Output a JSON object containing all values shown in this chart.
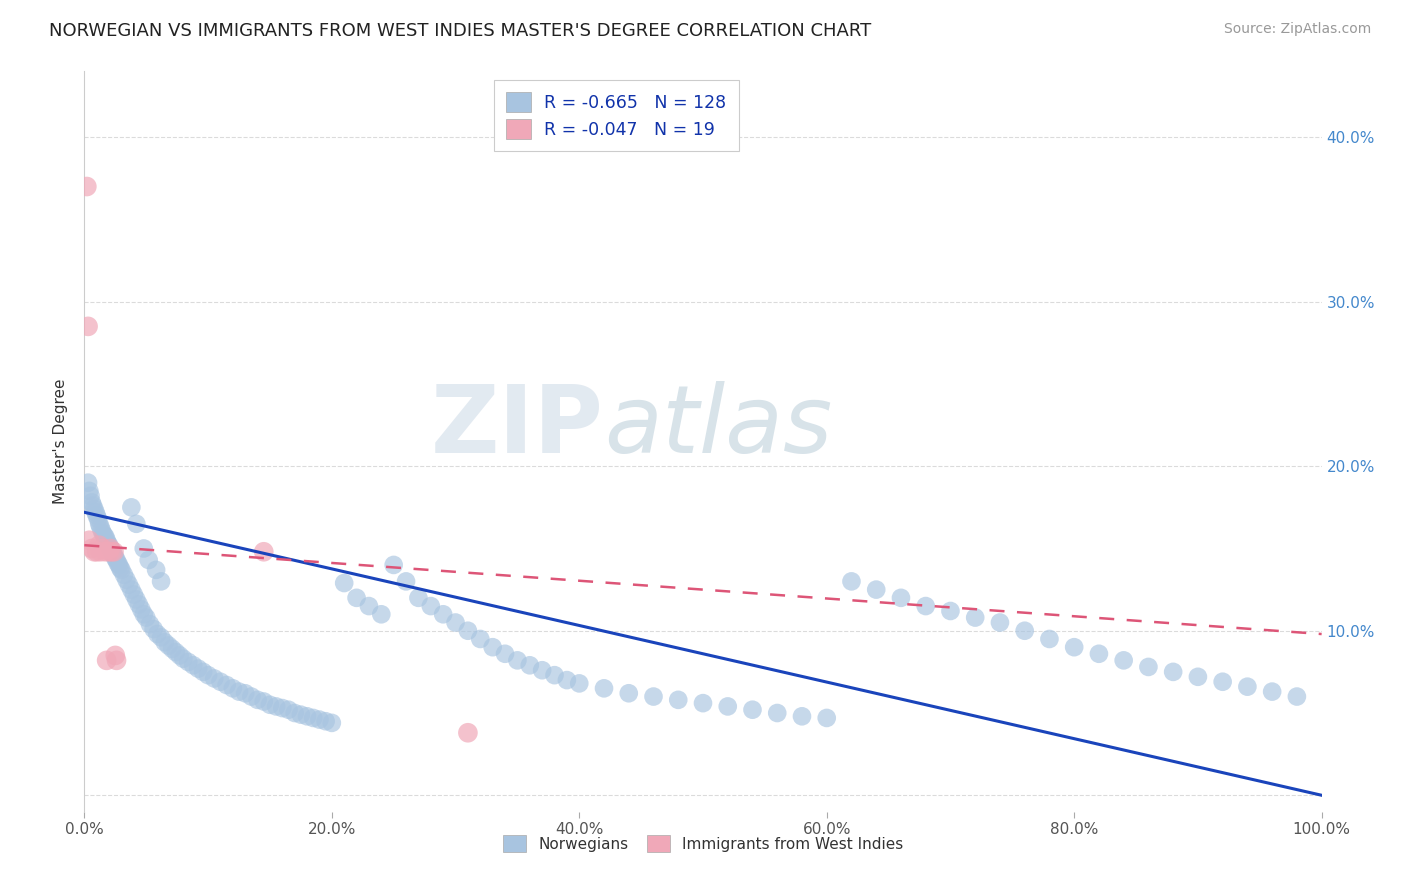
{
  "title": "NORWEGIAN VS IMMIGRANTS FROM WEST INDIES MASTER'S DEGREE CORRELATION CHART",
  "source": "Source: ZipAtlas.com",
  "ylabel": "Master's Degree",
  "xlim": [
    0.0,
    1.0
  ],
  "ylim": [
    -0.01,
    0.44
  ],
  "yticks": [
    0.0,
    0.1,
    0.2,
    0.3,
    0.4
  ],
  "ytick_labels_left": [
    "",
    "",
    "",
    "",
    ""
  ],
  "ytick_labels_right": [
    "",
    "10.0%",
    "20.0%",
    "30.0%",
    "40.0%"
  ],
  "xticks": [
    0.0,
    0.2,
    0.4,
    0.6,
    0.8,
    1.0
  ],
  "xtick_labels": [
    "0.0%",
    "20.0%",
    "40.0%",
    "60.0%",
    "80.0%",
    "100.0%"
  ],
  "norwegian_color": "#a8c4e0",
  "west_indies_color": "#f0a8b8",
  "norwegian_line_color": "#1a44bb",
  "west_indies_line_color": "#dd5577",
  "R_norwegian": -0.665,
  "N_norwegian": 128,
  "R_west_indies": -0.047,
  "N_west_indies": 19,
  "title_fontsize": 13,
  "source_fontsize": 10,
  "label_fontsize": 11,
  "tick_fontsize": 11,
  "watermark_text": "ZIPatlas",
  "background_color": "#ffffff",
  "grid_color": "#d8d8d8",
  "norwegian_x": [
    0.003,
    0.004,
    0.005,
    0.006,
    0.007,
    0.008,
    0.009,
    0.01,
    0.011,
    0.012,
    0.013,
    0.014,
    0.015,
    0.016,
    0.017,
    0.018,
    0.019,
    0.02,
    0.021,
    0.022,
    0.023,
    0.024,
    0.025,
    0.026,
    0.027,
    0.028,
    0.029,
    0.03,
    0.032,
    0.034,
    0.036,
    0.038,
    0.04,
    0.042,
    0.044,
    0.046,
    0.048,
    0.05,
    0.053,
    0.056,
    0.059,
    0.062,
    0.065,
    0.068,
    0.071,
    0.074,
    0.077,
    0.08,
    0.084,
    0.088,
    0.092,
    0.096,
    0.1,
    0.105,
    0.11,
    0.115,
    0.12,
    0.125,
    0.13,
    0.135,
    0.14,
    0.145,
    0.15,
    0.155,
    0.16,
    0.165,
    0.17,
    0.175,
    0.18,
    0.185,
    0.19,
    0.195,
    0.2,
    0.21,
    0.22,
    0.23,
    0.24,
    0.25,
    0.26,
    0.27,
    0.28,
    0.29,
    0.3,
    0.31,
    0.32,
    0.33,
    0.34,
    0.35,
    0.36,
    0.37,
    0.38,
    0.39,
    0.4,
    0.42,
    0.44,
    0.46,
    0.48,
    0.5,
    0.52,
    0.54,
    0.56,
    0.58,
    0.6,
    0.62,
    0.64,
    0.66,
    0.68,
    0.7,
    0.72,
    0.74,
    0.76,
    0.78,
    0.8,
    0.82,
    0.84,
    0.86,
    0.88,
    0.9,
    0.92,
    0.94,
    0.96,
    0.98,
    0.038,
    0.042,
    0.048,
    0.052,
    0.058,
    0.062
  ],
  "norwegian_y": [
    0.19,
    0.185,
    0.182,
    0.178,
    0.176,
    0.174,
    0.172,
    0.17,
    0.168,
    0.165,
    0.163,
    0.161,
    0.159,
    0.158,
    0.157,
    0.155,
    0.153,
    0.152,
    0.15,
    0.149,
    0.147,
    0.146,
    0.144,
    0.143,
    0.141,
    0.14,
    0.138,
    0.137,
    0.134,
    0.131,
    0.128,
    0.125,
    0.122,
    0.119,
    0.116,
    0.113,
    0.11,
    0.108,
    0.104,
    0.101,
    0.098,
    0.096,
    0.093,
    0.091,
    0.089,
    0.087,
    0.085,
    0.083,
    0.081,
    0.079,
    0.077,
    0.075,
    0.073,
    0.071,
    0.069,
    0.067,
    0.065,
    0.063,
    0.062,
    0.06,
    0.058,
    0.057,
    0.055,
    0.054,
    0.053,
    0.052,
    0.05,
    0.049,
    0.048,
    0.047,
    0.046,
    0.045,
    0.044,
    0.129,
    0.12,
    0.115,
    0.11,
    0.14,
    0.13,
    0.12,
    0.115,
    0.11,
    0.105,
    0.1,
    0.095,
    0.09,
    0.086,
    0.082,
    0.079,
    0.076,
    0.073,
    0.07,
    0.068,
    0.065,
    0.062,
    0.06,
    0.058,
    0.056,
    0.054,
    0.052,
    0.05,
    0.048,
    0.047,
    0.13,
    0.125,
    0.12,
    0.115,
    0.112,
    0.108,
    0.105,
    0.1,
    0.095,
    0.09,
    0.086,
    0.082,
    0.078,
    0.075,
    0.072,
    0.069,
    0.066,
    0.063,
    0.06,
    0.175,
    0.165,
    0.15,
    0.143,
    0.137,
    0.13
  ],
  "west_indies_x": [
    0.002,
    0.003,
    0.004,
    0.006,
    0.008,
    0.01,
    0.012,
    0.013,
    0.015,
    0.017,
    0.018,
    0.02,
    0.021,
    0.022,
    0.024,
    0.025,
    0.026,
    0.145,
    0.31
  ],
  "west_indies_y": [
    0.37,
    0.285,
    0.155,
    0.15,
    0.148,
    0.148,
    0.152,
    0.148,
    0.15,
    0.148,
    0.082,
    0.148,
    0.15,
    0.148,
    0.148,
    0.085,
    0.082,
    0.148,
    0.038
  ]
}
